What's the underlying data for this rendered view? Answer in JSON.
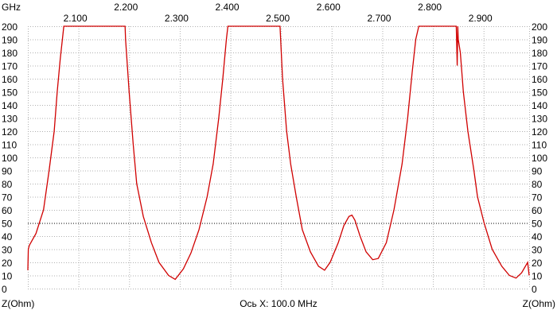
{
  "chart_data": {
    "type": "line",
    "x_unit": "GHz",
    "left_axis_label": "Z(Ohm)",
    "right_axis_label": "Z(Ohm)",
    "x_scale_label": "Ось X: 100.0 MHz",
    "xlim": [
      2.0,
      2.99
    ],
    "ylim": [
      0,
      200
    ],
    "x_ticks": [
      2.1,
      2.2,
      2.3,
      2.4,
      2.5,
      2.6,
      2.7,
      2.8,
      2.9
    ],
    "x_tick_labels": [
      "2.100",
      "2.200",
      "2.300",
      "2.400",
      "2.500",
      "2.600",
      "2.700",
      "2.800",
      "2.900"
    ],
    "y_ticks": [
      0,
      10,
      20,
      30,
      40,
      50,
      60,
      70,
      80,
      90,
      100,
      110,
      120,
      130,
      140,
      150,
      160,
      170,
      180,
      190,
      200
    ],
    "grid": true,
    "reference_line": 50,
    "colors": {
      "series": "#d00000",
      "grid": "#b0b0b0",
      "reference": "#000000"
    },
    "series": [
      {
        "x": [
          2.0,
          2.001,
          2.003,
          2.016,
          2.031,
          2.042,
          2.052,
          2.058,
          2.064,
          2.071,
          2.192,
          2.193,
          2.2,
          2.208,
          2.215,
          2.228,
          2.244,
          2.259,
          2.278,
          2.291,
          2.307,
          2.322,
          2.338,
          2.354,
          2.366,
          2.377,
          2.385,
          2.392,
          2.395,
          2.498,
          2.503,
          2.511,
          2.519,
          2.53,
          2.542,
          2.558,
          2.574,
          2.586,
          2.597,
          2.613,
          2.624,
          2.634,
          2.64,
          2.646,
          2.656,
          2.668,
          2.681,
          2.692,
          2.708,
          2.723,
          2.739,
          2.75,
          2.759,
          2.766,
          2.772,
          2.846,
          2.848,
          2.849,
          2.85,
          2.854,
          2.86,
          2.869,
          2.881,
          2.888,
          2.901,
          2.917,
          2.936,
          2.951,
          2.964,
          2.975,
          2.987,
          2.99
        ],
        "y": [
          14,
          30,
          33,
          42,
          60,
          90,
          120,
          150,
          175,
          200,
          200,
          190,
          150,
          110,
          80,
          55,
          35,
          20,
          10,
          7,
          15,
          27,
          45,
          70,
          95,
          130,
          160,
          190,
          200,
          200,
          160,
          120,
          95,
          70,
          45,
          28,
          17,
          14,
          20,
          35,
          48,
          55,
          56,
          52,
          40,
          28,
          22,
          23,
          35,
          60,
          95,
          130,
          165,
          190,
          200,
          200,
          170,
          200,
          190,
          180,
          150,
          120,
          90,
          70,
          50,
          30,
          17,
          10,
          8,
          12,
          20,
          10
        ]
      }
    ]
  }
}
